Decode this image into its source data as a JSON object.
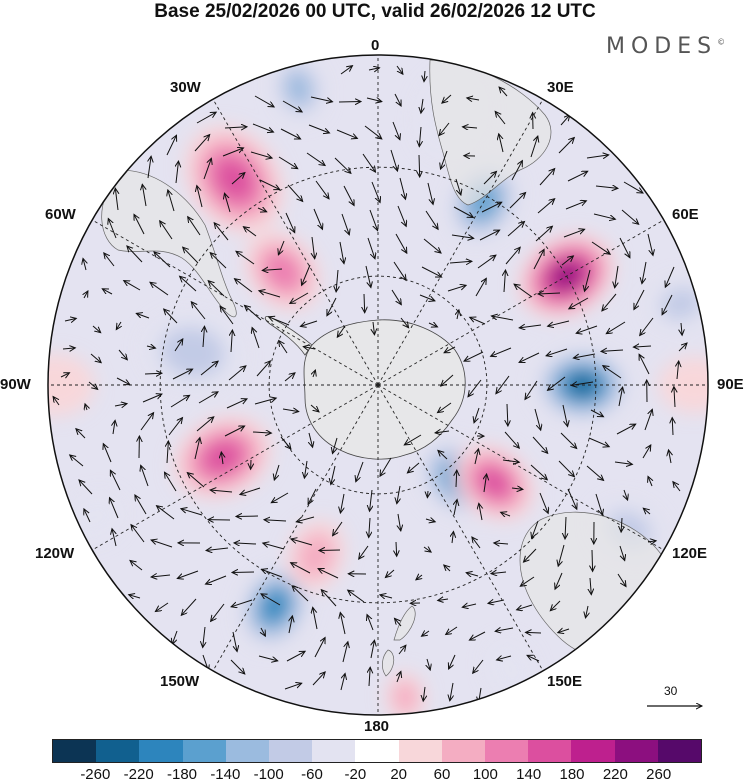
{
  "title": "Base 25/02/2026 00 UTC, valid 26/02/2026 12 UTC",
  "brand": "MODES",
  "brand_mark": "©",
  "longitude_labels": {
    "lon_0": "0",
    "lon_30e": "30E",
    "lon_60e": "60E",
    "lon_90e": "90E",
    "lon_120e": "120E",
    "lon_150e": "150E",
    "lon_180": "180",
    "lon_150w": "150W",
    "lon_120w": "120W",
    "lon_90w": "90W",
    "lon_60w": "60W",
    "lon_30w": "30W"
  },
  "reference_vector_label": "30",
  "colorbar": {
    "colors": [
      "#0c3454",
      "#11608f",
      "#2d85bd",
      "#5ba0cf",
      "#9bbbdf",
      "#c2cbe6",
      "#e3e3f1",
      "#ffffff",
      "#f8d7da",
      "#f4adc2",
      "#ec7eb1",
      "#dc4f9f",
      "#be208e",
      "#8c0f7f",
      "#56096a"
    ],
    "tick_labels": [
      "-260",
      "-220",
      "-180",
      "-140",
      "-100",
      "-60",
      "-20",
      "20",
      "60",
      "100",
      "140",
      "180",
      "220",
      "260"
    ]
  },
  "anomaly_features": [
    {
      "lon": 60,
      "colat": 0.66,
      "value": 270,
      "size": 0.14
    },
    {
      "lon": 90,
      "colat": 0.62,
      "value": -250,
      "size": 0.13
    },
    {
      "lon": 140,
      "colat": 0.37,
      "value": -190,
      "size": 0.12
    },
    {
      "lon": 130,
      "colat": 0.46,
      "value": 180,
      "size": 0.12
    },
    {
      "lon": 30,
      "colat": 0.64,
      "value": -190,
      "size": 0.12
    },
    {
      "lon": -35,
      "colat": 0.76,
      "value": 190,
      "size": 0.16
    },
    {
      "lon": -40,
      "colat": 0.45,
      "value": 120,
      "size": 0.12
    },
    {
      "lon": -115,
      "colat": 0.52,
      "value": 160,
      "size": 0.14
    },
    {
      "lon": -155,
      "colat": 0.74,
      "value": -200,
      "size": 0.12
    },
    {
      "lon": -160,
      "colat": 0.55,
      "value": 100,
      "size": 0.1
    },
    {
      "lon": -80,
      "colat": 0.57,
      "value": -100,
      "size": 0.14
    },
    {
      "lon": -15,
      "colat": 0.93,
      "value": -120,
      "size": 0.09
    },
    {
      "lon": 75,
      "colat": 0.95,
      "value": -100,
      "size": 0.09
    },
    {
      "lon": 120,
      "colat": 0.88,
      "value": -80,
      "size": 0.1
    },
    {
      "lon": 155,
      "colat": 0.95,
      "value": -60,
      "size": 0.08
    },
    {
      "lon": 175,
      "colat": 0.95,
      "value": 80,
      "size": 0.07
    },
    {
      "lon": -90,
      "colat": 0.98,
      "value": 60,
      "size": 0.11
    },
    {
      "lon": 90,
      "colat": 0.96,
      "value": 50,
      "size": 0.1
    },
    {
      "lon": -115,
      "colat": 0.95,
      "value": -50,
      "size": 0.08
    },
    {
      "lon": 15,
      "colat": 0.85,
      "value": -40,
      "size": 0.12
    }
  ]
}
